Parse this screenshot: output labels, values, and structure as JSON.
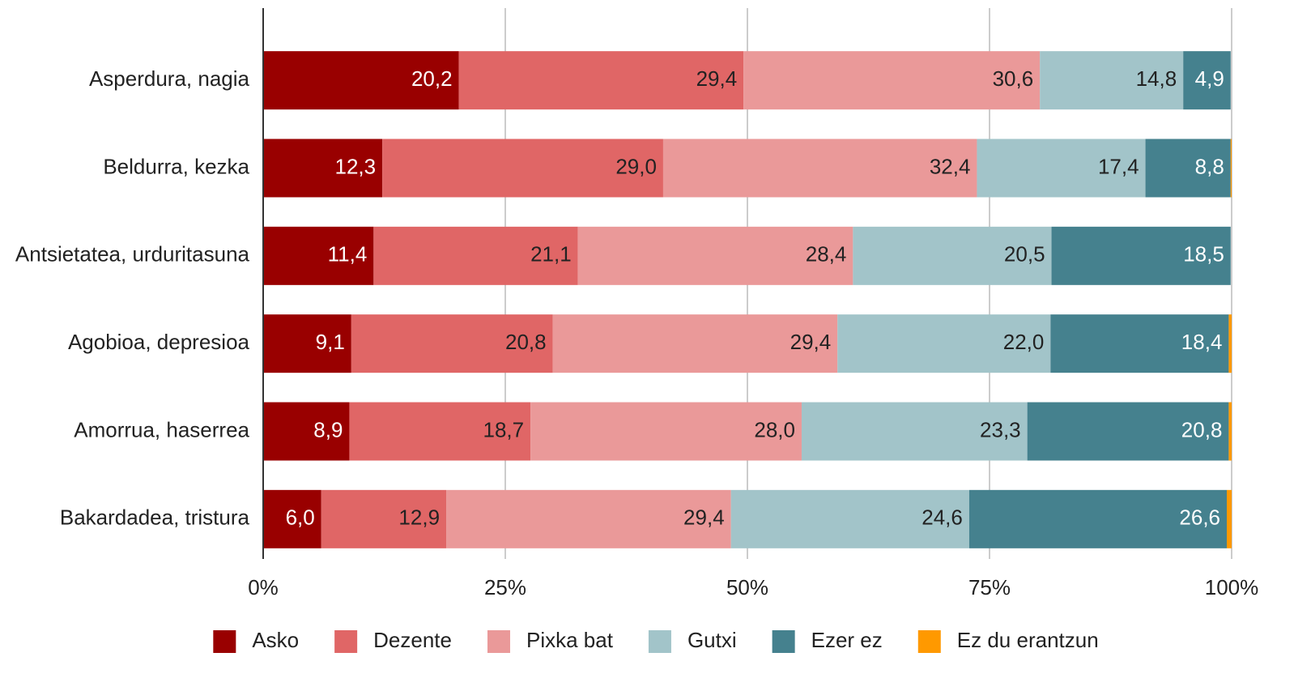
{
  "chart_data": {
    "type": "stacked-bar-horizontal",
    "categories": [
      "Asperdura, nagia",
      "Beldurra, kezka",
      "Antsietatea, urduritasuna",
      "Agobioa, depresioa",
      "Amorrua, haserrea",
      "Bakardadea, tristura"
    ],
    "series": [
      {
        "name": "Asko",
        "color": "#990000",
        "values": [
          20.2,
          12.3,
          11.4,
          9.1,
          8.9,
          6.0
        ],
        "value_labels": [
          "20,2",
          "12,3",
          "11,4",
          "9,1",
          "8,9",
          "6,0"
        ]
      },
      {
        "name": "Dezente",
        "color": "#e06666",
        "values": [
          29.4,
          29.0,
          21.1,
          20.8,
          18.7,
          12.9
        ],
        "value_labels": [
          "29,4",
          "29,0",
          "21,1",
          "20,8",
          "18,7",
          "12,9"
        ]
      },
      {
        "name": "Pixka bat",
        "color": "#ea9999",
        "values": [
          30.6,
          32.4,
          28.4,
          29.4,
          28.0,
          29.4
        ],
        "value_labels": [
          "30,6",
          "32,4",
          "28,4",
          "29,4",
          "28,0",
          "29,4"
        ]
      },
      {
        "name": "Gutxi",
        "color": "#a2c4c9",
        "values": [
          14.8,
          17.4,
          20.5,
          22.0,
          23.3,
          24.6
        ],
        "value_labels": [
          "14,8",
          "17,4",
          "20,5",
          "22,0",
          "23,3",
          "24,6"
        ]
      },
      {
        "name": "Ezer ez",
        "color": "#45818e",
        "values": [
          4.9,
          8.8,
          18.5,
          18.4,
          20.8,
          26.6
        ],
        "value_labels": [
          "4,9",
          "8,8",
          "18,5",
          "18,4",
          "20,8",
          "26,6"
        ]
      },
      {
        "name": "Ez du erantzun",
        "color": "#ff9900",
        "values": [
          0,
          0.1,
          0,
          0.3,
          0.3,
          0.5
        ]
      }
    ],
    "xlim": [
      0,
      100
    ],
    "xticks": [
      {
        "value": 0,
        "label": "0%"
      },
      {
        "value": 25,
        "label": "25%"
      },
      {
        "value": 50,
        "label": "50%"
      },
      {
        "value": 75,
        "label": "75%"
      },
      {
        "value": 100,
        "label": "100%"
      }
    ],
    "grid": true,
    "legend": "bottom"
  }
}
